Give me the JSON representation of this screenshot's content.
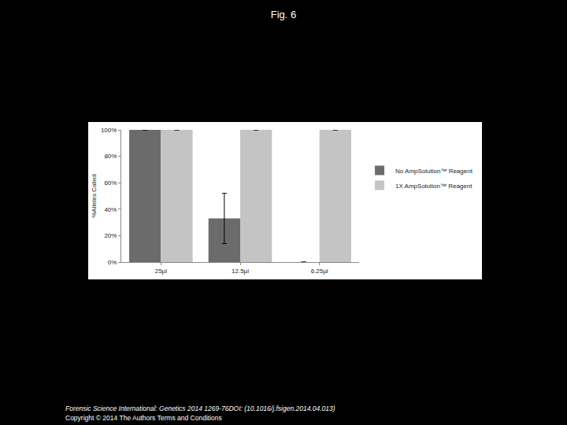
{
  "header": "Fig. 6",
  "footer": [
    "Forensic Science International: Genetics 2014 1269-76DOI: (10.1016/j.fsigen.2014.04.013)",
    "Copyright © 2014 The Authors Terms and Conditions"
  ],
  "chart_data": {
    "type": "bar",
    "y_label": "%Alleles Called",
    "categories": [
      "25µl",
      "12.5µl",
      "6.25µl"
    ],
    "series": [
      {
        "name": "No AmpSolution™ Reagent",
        "color": "#6b6b6b",
        "values": [
          100,
          33,
          0
        ],
        "errors": [
          0,
          19,
          null
        ]
      },
      {
        "name": "1X AmpSolution™ Reagent",
        "color": "#c4c4c4",
        "values": [
          100,
          100,
          100
        ],
        "errors": [
          0,
          0,
          0
        ]
      }
    ],
    "ylim": [
      0,
      100
    ],
    "yticks": [
      {
        "value": 0,
        "label": "0%"
      },
      {
        "value": 20,
        "label": "20%"
      },
      {
        "value": 40,
        "label": "40%"
      },
      {
        "value": 60,
        "label": "60%"
      },
      {
        "value": 80,
        "label": "80%"
      },
      {
        "value": 100,
        "label": "100%"
      }
    ],
    "grid": false,
    "legend": "right"
  }
}
